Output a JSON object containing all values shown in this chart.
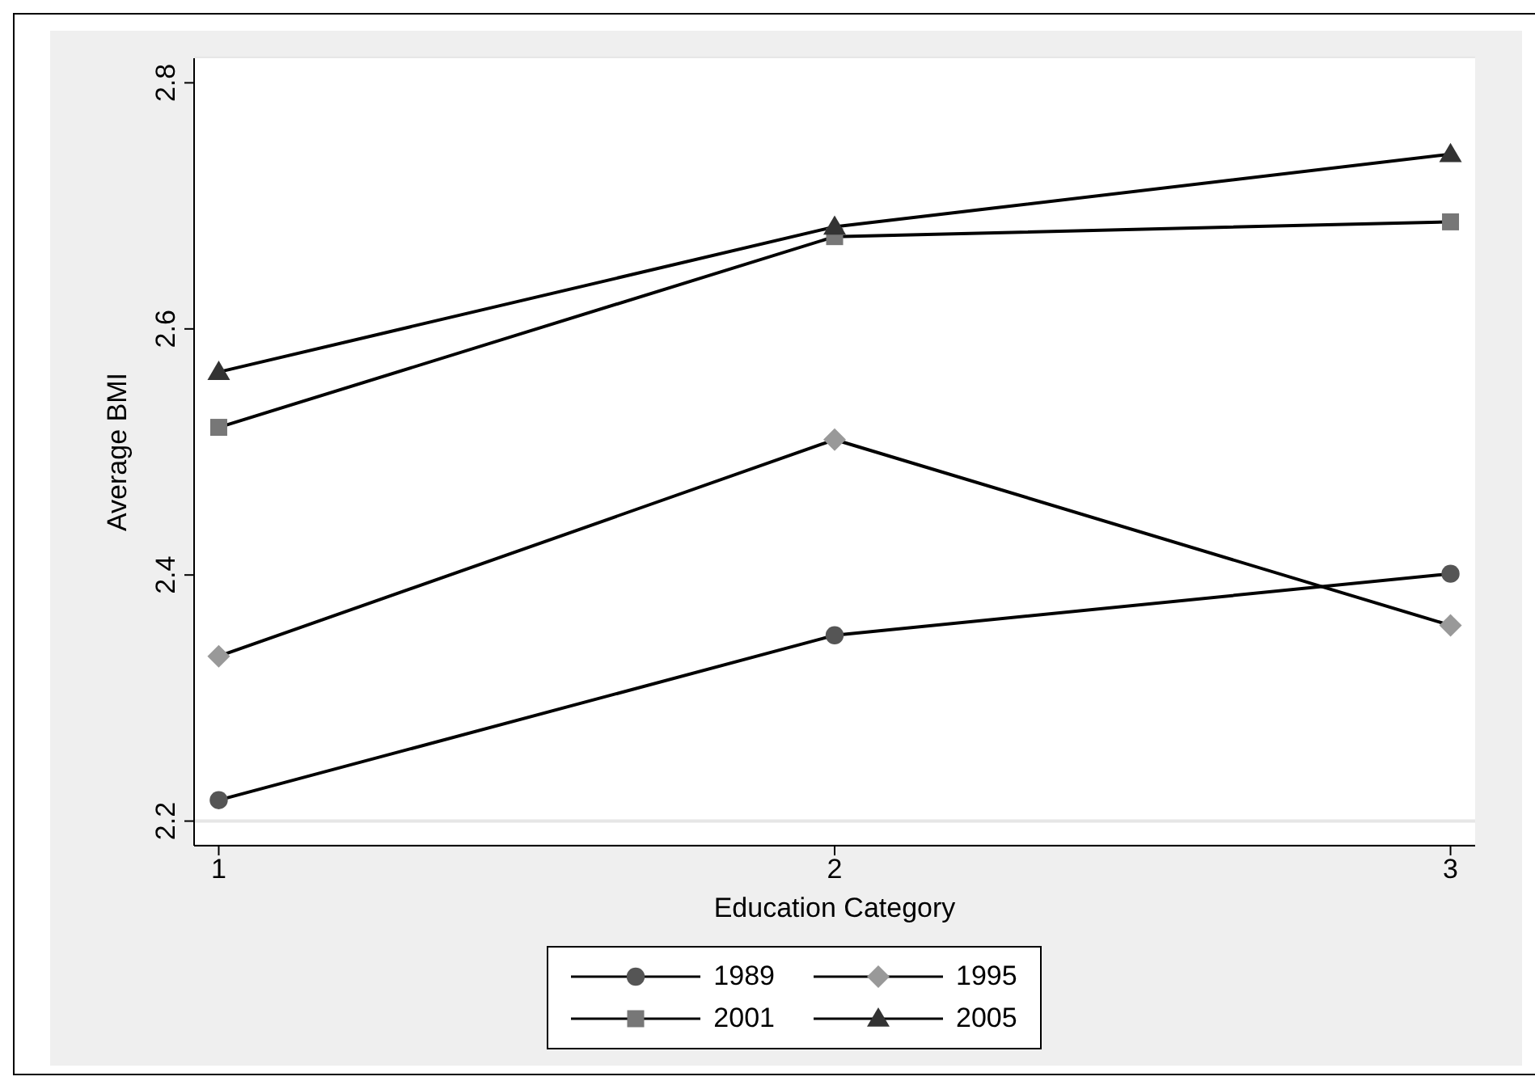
{
  "chart_data": {
    "type": "line",
    "xlabel": "Education Category",
    "ylabel": "Average BMI",
    "x": [
      1,
      2,
      3
    ],
    "xlim": [
      0.96,
      3.04
    ],
    "xticks": [
      1,
      2,
      3
    ],
    "ylim": [
      2.18,
      2.82
    ],
    "yticks": [
      2.2,
      2.4,
      2.6,
      2.8
    ],
    "grid": "y",
    "legend": "bottom",
    "series": [
      {
        "name": "1989",
        "color": "#555555",
        "marker": "circle",
        "values": [
          2.217,
          2.351,
          2.401
        ]
      },
      {
        "name": "1995",
        "color": "#999999",
        "marker": "diamond",
        "values": [
          2.334,
          2.51,
          2.359
        ]
      },
      {
        "name": "2001",
        "color": "#777777",
        "marker": "square",
        "values": [
          2.52,
          2.675,
          2.687
        ]
      },
      {
        "name": "2005",
        "color": "#333333",
        "marker": "triangle",
        "values": [
          2.565,
          2.683,
          2.742
        ]
      }
    ]
  }
}
